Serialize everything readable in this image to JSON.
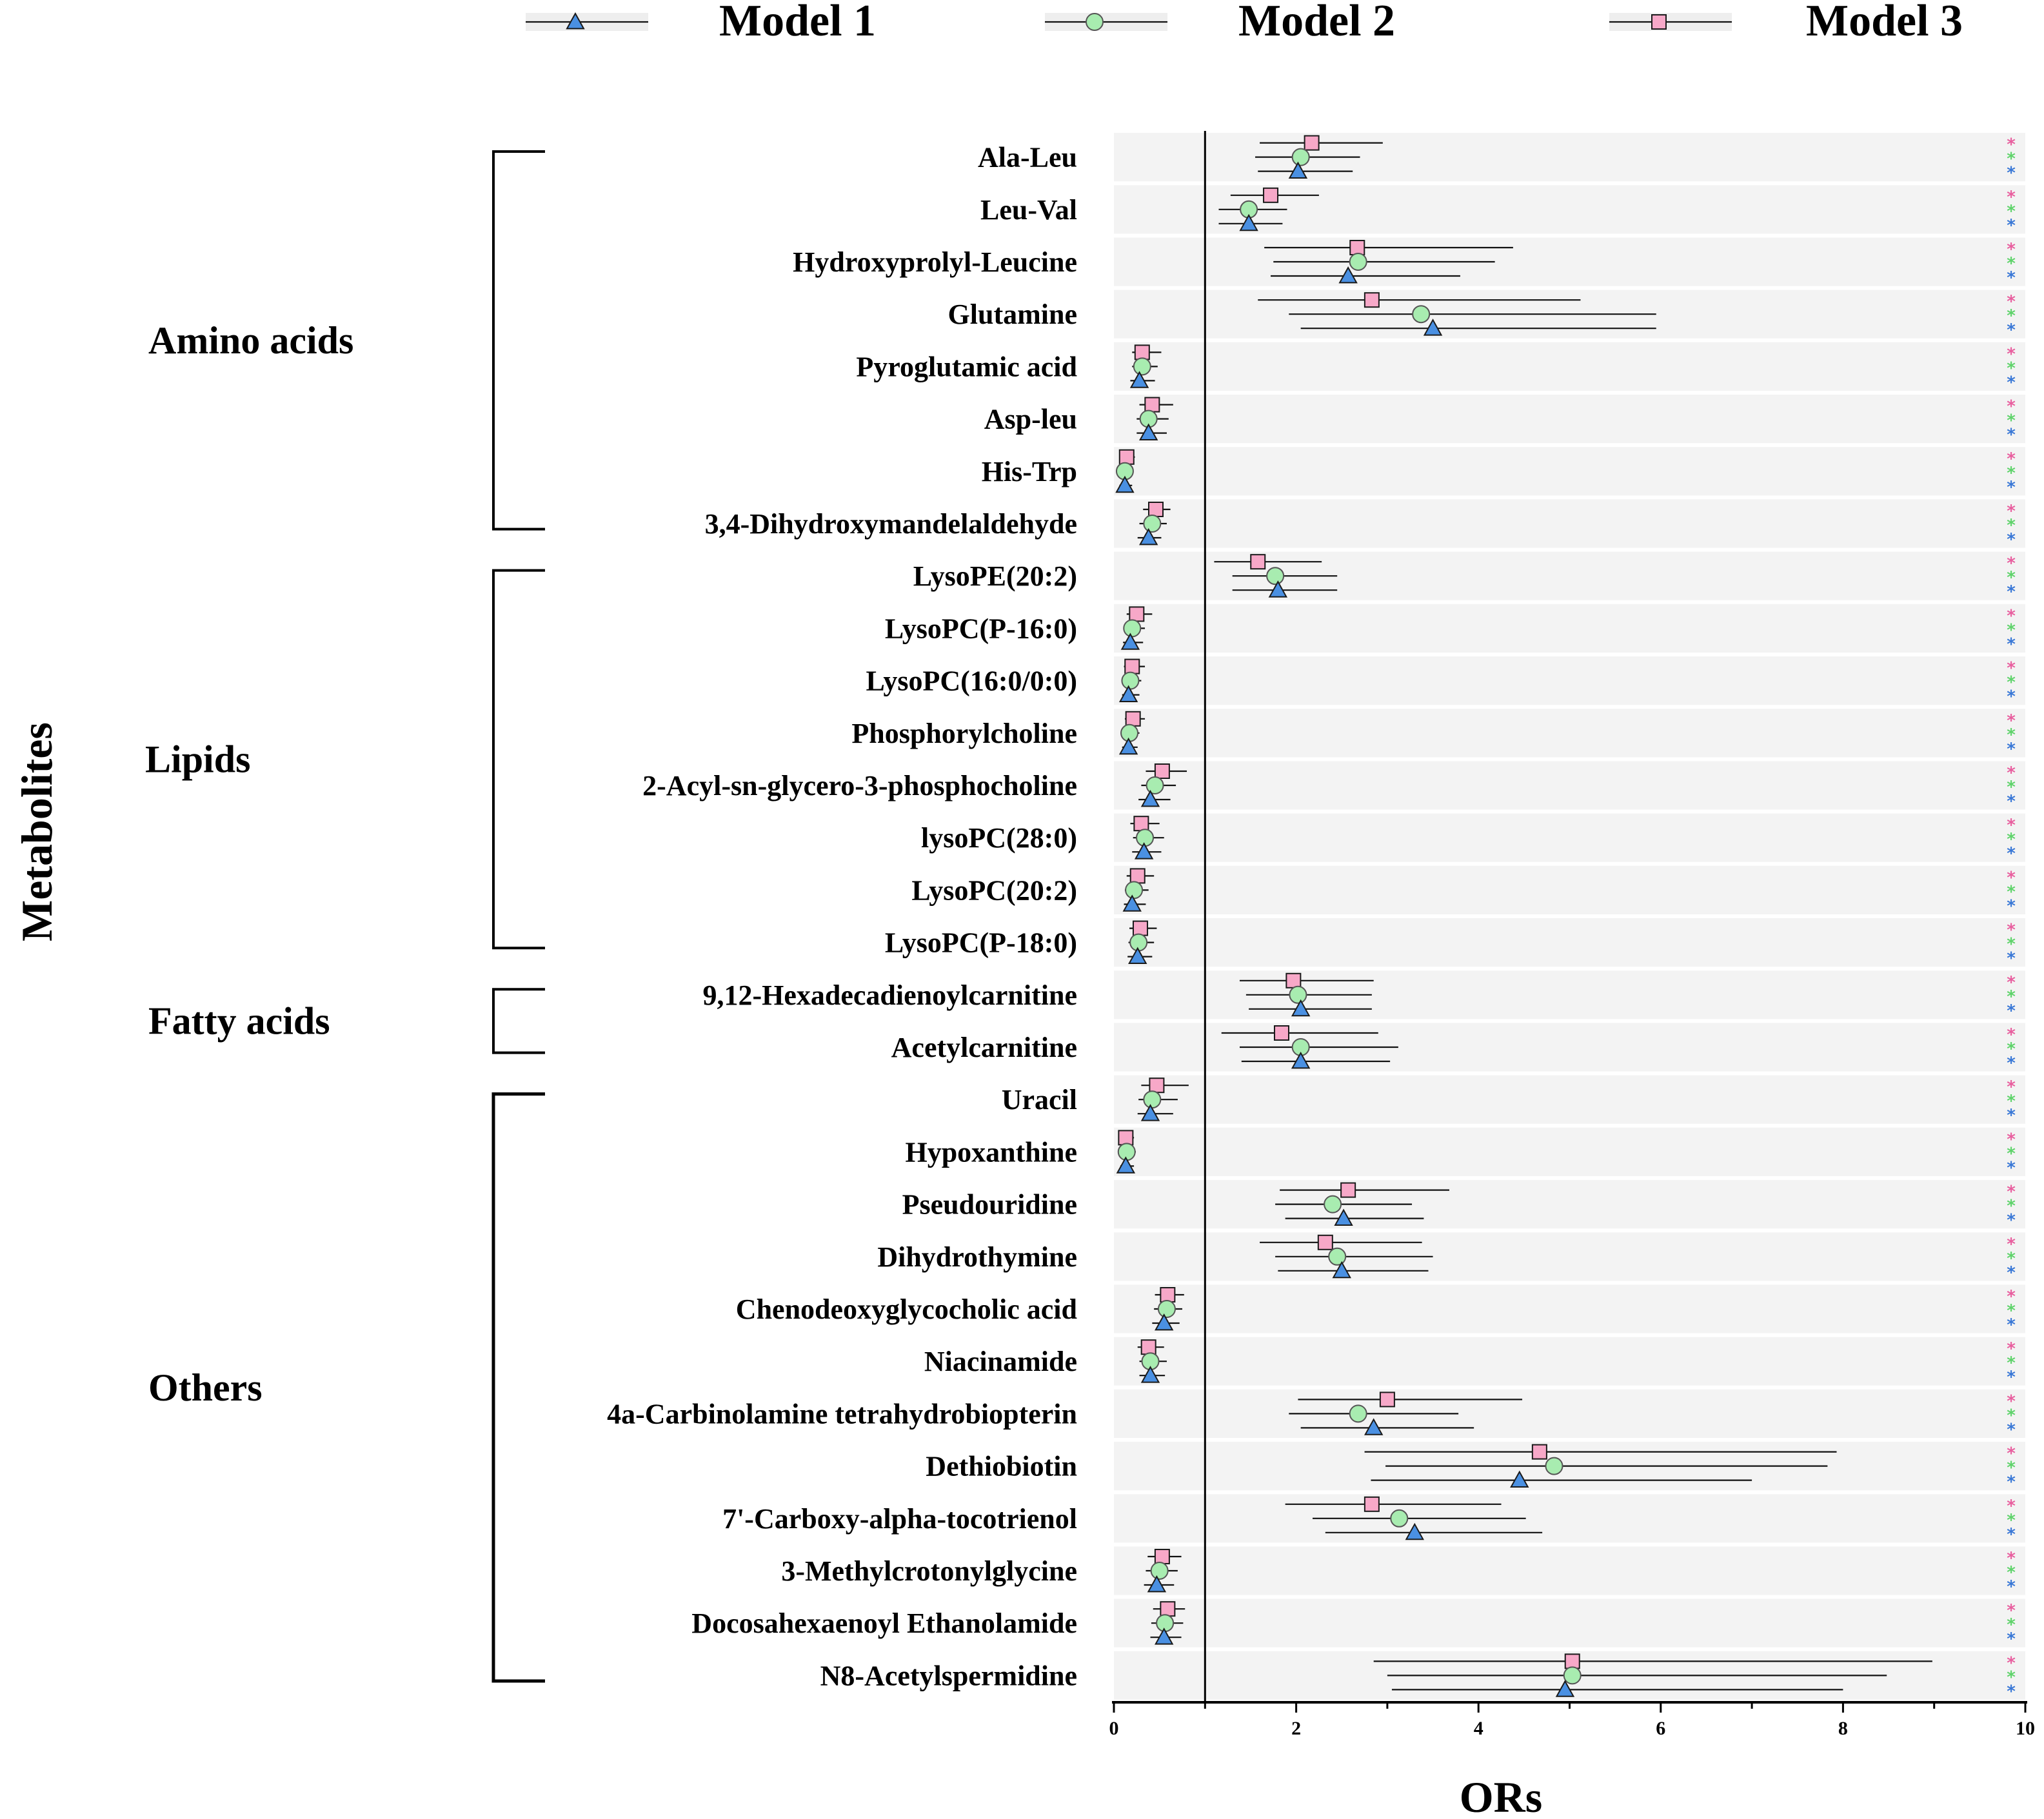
{
  "chart_data": {
    "type": "forest",
    "xlabel": "ORs",
    "ylabel": "Metabolites",
    "xlim": [
      0,
      10
    ],
    "xticks": [
      "0",
      "2",
      "4",
      "6",
      "8",
      "10"
    ],
    "reference_line": 1,
    "significance_marker": "*",
    "legend": [
      {
        "name": "Model 1",
        "marker": "triangle",
        "color": "#4a90e2"
      },
      {
        "name": "Model 2",
        "marker": "circle",
        "color": "#a8ecb0"
      },
      {
        "name": "Model 3",
        "marker": "square",
        "color": "#f7a8c8"
      }
    ],
    "groups": [
      {
        "name": "Amino acids",
        "start": 0,
        "end": 7
      },
      {
        "name": "Lipids",
        "start": 8,
        "end": 15
      },
      {
        "name": "Fatty acids",
        "start": 16,
        "end": 17
      },
      {
        "name": "Others",
        "start": 18,
        "end": 29
      }
    ],
    "metabolites": [
      {
        "name": "Ala-Leu",
        "m1": [
          2.02,
          1.58,
          2.62
        ],
        "m2": [
          2.05,
          1.55,
          2.7
        ],
        "m3": [
          2.17,
          1.6,
          2.95
        ]
      },
      {
        "name": "Leu-Val",
        "m1": [
          1.48,
          1.15,
          1.85
        ],
        "m2": [
          1.48,
          1.15,
          1.9
        ],
        "m3": [
          1.72,
          1.28,
          2.25
        ]
      },
      {
        "name": "Hydroxyprolyl-Leucine",
        "m1": [
          2.57,
          1.72,
          3.8
        ],
        "m2": [
          2.68,
          1.75,
          4.18
        ],
        "m3": [
          2.67,
          1.65,
          4.38
        ]
      },
      {
        "name": "Glutamine",
        "m1": [
          3.5,
          2.05,
          5.95
        ],
        "m2": [
          3.37,
          1.92,
          5.95
        ],
        "m3": [
          2.83,
          1.58,
          5.12
        ]
      },
      {
        "name": "Pyroglutamic acid",
        "m1": [
          0.28,
          0.18,
          0.45
        ],
        "m2": [
          0.31,
          0.2,
          0.48
        ],
        "m3": [
          0.31,
          0.2,
          0.52
        ]
      },
      {
        "name": "Asp-leu",
        "m1": [
          0.38,
          0.25,
          0.58
        ],
        "m2": [
          0.38,
          0.25,
          0.6
        ],
        "m3": [
          0.42,
          0.28,
          0.65
        ]
      },
      {
        "name": "His-Trp",
        "m1": [
          0.12,
          0.06,
          0.2
        ],
        "m2": [
          0.12,
          0.06,
          0.2
        ],
        "m3": [
          0.14,
          0.07,
          0.23
        ]
      },
      {
        "name": "3,4-Dihydroxymandelaldehyde",
        "m1": [
          0.38,
          0.26,
          0.52
        ],
        "m2": [
          0.42,
          0.28,
          0.58
        ],
        "m3": [
          0.46,
          0.32,
          0.62
        ]
      },
      {
        "name": "LysoPE(20:2)",
        "m1": [
          1.8,
          1.3,
          2.45
        ],
        "m2": [
          1.77,
          1.3,
          2.45
        ],
        "m3": [
          1.58,
          1.1,
          2.28
        ]
      },
      {
        "name": "LysoPC(P-16:0)",
        "m1": [
          0.18,
          0.1,
          0.32
        ],
        "m2": [
          0.2,
          0.11,
          0.34
        ],
        "m3": [
          0.25,
          0.14,
          0.42
        ]
      },
      {
        "name": "LysoPC(16:0/0:0)",
        "m1": [
          0.16,
          0.09,
          0.28
        ],
        "m2": [
          0.18,
          0.1,
          0.3
        ],
        "m3": [
          0.2,
          0.11,
          0.34
        ]
      },
      {
        "name": "Phosphorylcholine",
        "m1": [
          0.16,
          0.09,
          0.26
        ],
        "m2": [
          0.17,
          0.1,
          0.28
        ],
        "m3": [
          0.21,
          0.12,
          0.34
        ]
      },
      {
        "name": "2-Acyl-sn-glycero-3-phosphocholine",
        "m1": [
          0.4,
          0.27,
          0.62
        ],
        "m2": [
          0.45,
          0.3,
          0.68
        ],
        "m3": [
          0.53,
          0.35,
          0.8
        ]
      },
      {
        "name": "lysoPC(28:0)",
        "m1": [
          0.33,
          0.2,
          0.52
        ],
        "m2": [
          0.34,
          0.21,
          0.55
        ],
        "m3": [
          0.3,
          0.18,
          0.5
        ]
      },
      {
        "name": "LysoPC(20:2)",
        "m1": [
          0.2,
          0.11,
          0.35
        ],
        "m2": [
          0.22,
          0.12,
          0.38
        ],
        "m3": [
          0.26,
          0.14,
          0.44
        ]
      },
      {
        "name": "LysoPC(P-18:0)",
        "m1": [
          0.26,
          0.15,
          0.42
        ],
        "m2": [
          0.27,
          0.16,
          0.44
        ],
        "m3": [
          0.29,
          0.17,
          0.47
        ]
      },
      {
        "name": "9,12-Hexadecadienoylcarnitine",
        "m1": [
          2.05,
          1.48,
          2.83
        ],
        "m2": [
          2.02,
          1.45,
          2.83
        ],
        "m3": [
          1.97,
          1.38,
          2.85
        ]
      },
      {
        "name": "Acetylcarnitine",
        "m1": [
          2.05,
          1.4,
          3.03
        ],
        "m2": [
          2.05,
          1.38,
          3.12
        ],
        "m3": [
          1.84,
          1.18,
          2.9
        ]
      },
      {
        "name": "Uracil",
        "m1": [
          0.4,
          0.26,
          0.65
        ],
        "m2": [
          0.42,
          0.27,
          0.7
        ],
        "m3": [
          0.47,
          0.3,
          0.82
        ]
      },
      {
        "name": "Hypoxanthine",
        "m1": [
          0.13,
          0.07,
          0.22
        ],
        "m2": [
          0.14,
          0.08,
          0.24
        ],
        "m3": [
          0.13,
          0.07,
          0.22
        ]
      },
      {
        "name": "Pseudouridine",
        "m1": [
          2.52,
          1.88,
          3.4
        ],
        "m2": [
          2.4,
          1.77,
          3.27
        ],
        "m3": [
          2.57,
          1.82,
          3.68
        ]
      },
      {
        "name": "Dihydrothymine",
        "m1": [
          2.5,
          1.8,
          3.45
        ],
        "m2": [
          2.45,
          1.77,
          3.5
        ],
        "m3": [
          2.32,
          1.6,
          3.38
        ]
      },
      {
        "name": "Chenodeoxyglycocholic acid",
        "m1": [
          0.55,
          0.42,
          0.72
        ],
        "m2": [
          0.58,
          0.44,
          0.75
        ],
        "m3": [
          0.59,
          0.45,
          0.77
        ]
      },
      {
        "name": "Niacinamide",
        "m1": [
          0.4,
          0.28,
          0.56
        ],
        "m2": [
          0.4,
          0.28,
          0.58
        ],
        "m3": [
          0.38,
          0.26,
          0.55
        ]
      },
      {
        "name": "4a-Carbinolamine tetrahydrobiopterin",
        "m1": [
          2.85,
          2.05,
          3.95
        ],
        "m2": [
          2.68,
          1.92,
          3.78
        ],
        "m3": [
          3.0,
          2.02,
          4.48
        ]
      },
      {
        "name": "Dethiobiotin",
        "m1": [
          4.45,
          2.82,
          7.0
        ],
        "m2": [
          4.83,
          2.98,
          7.83
        ],
        "m3": [
          4.67,
          2.75,
          7.93
        ]
      },
      {
        "name": "7'-Carboxy-alpha-tocotrienol",
        "m1": [
          3.3,
          2.32,
          4.7
        ],
        "m2": [
          3.13,
          2.18,
          4.52
        ],
        "m3": [
          2.83,
          1.88,
          4.25
        ]
      },
      {
        "name": "3-Methylcrotonylglycine",
        "m1": [
          0.47,
          0.33,
          0.66
        ],
        "m2": [
          0.5,
          0.35,
          0.7
        ],
        "m3": [
          0.53,
          0.37,
          0.74
        ]
      },
      {
        "name": "Docosahexaenoyl Ethanolamide",
        "m1": [
          0.55,
          0.4,
          0.74
        ],
        "m2": [
          0.56,
          0.41,
          0.76
        ],
        "m3": [
          0.59,
          0.43,
          0.78
        ]
      },
      {
        "name": "N8-Acetylspermidine",
        "m1": [
          4.95,
          3.05,
          8.0
        ],
        "m2": [
          5.03,
          3.0,
          8.48
        ],
        "m3": [
          5.03,
          2.85,
          8.98
        ]
      }
    ]
  }
}
